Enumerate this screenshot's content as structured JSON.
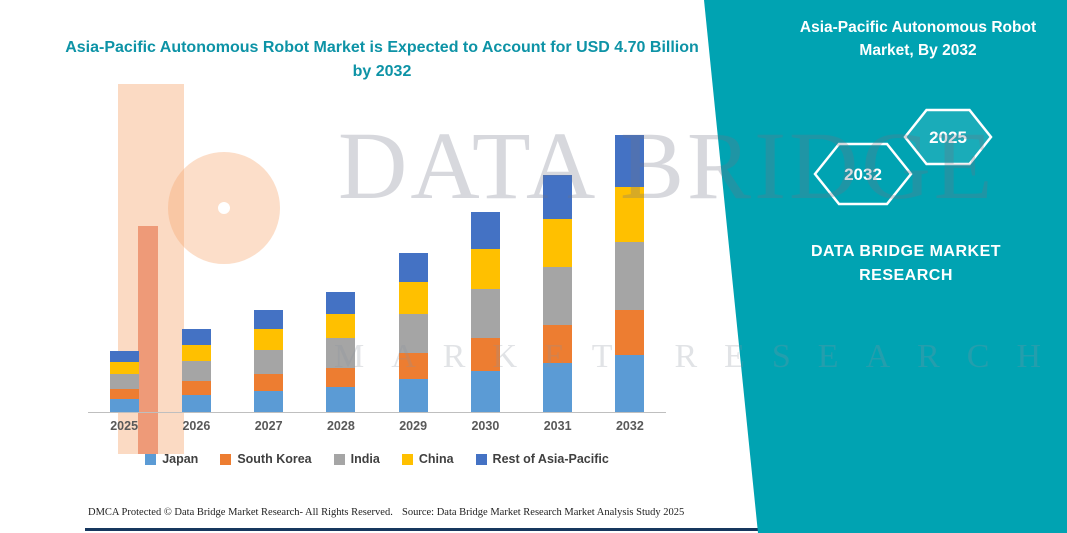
{
  "title": "Asia-Pacific Autonomous Robot Market is Expected to Account for USD 4.70 Billion by 2032",
  "colors": {
    "accent_teal": "#00A3B2",
    "title_text": "#0D93A6"
  },
  "right_panel": {
    "heading": "Asia-Pacific Autonomous Robot Market, By 2032",
    "hexagon_back_label": "2032",
    "hexagon_front_label": "2025",
    "brand": "DATA BRIDGE MARKET RESEARCH"
  },
  "watermark": {
    "line1": "DATA BRIDGE",
    "line2": "MARKET RESEARCH"
  },
  "footer": {
    "dmca": "DMCA Protected © Data Bridge Market Research-  All Rights Reserved.",
    "source": "Source: Data Bridge Market Research  Market Analysis Study 2025"
  },
  "chart_data": {
    "type": "bar",
    "stacked": true,
    "title": "Asia-Pacific Autonomous Robot Market is Expected to Account for USD 4.70 Billion by 2032",
    "unit": "USD Billion",
    "categories": [
      "2025",
      "2026",
      "2027",
      "2028",
      "2029",
      "2030",
      "2031",
      "2032"
    ],
    "series": [
      {
        "name": "Japan",
        "color": "#5B9BD5",
        "values": [
          0.22,
          0.29,
          0.36,
          0.42,
          0.56,
          0.7,
          0.83,
          0.97
        ]
      },
      {
        "name": "South Korea",
        "color": "#ED7D31",
        "values": [
          0.17,
          0.23,
          0.28,
          0.33,
          0.44,
          0.55,
          0.65,
          0.76
        ]
      },
      {
        "name": "India",
        "color": "#A5A5A5",
        "values": [
          0.25,
          0.34,
          0.42,
          0.5,
          0.66,
          0.83,
          0.98,
          1.15
        ]
      },
      {
        "name": "China",
        "color": "#FFC000",
        "values": [
          0.21,
          0.28,
          0.35,
          0.41,
          0.54,
          0.68,
          0.81,
          0.94
        ]
      },
      {
        "name": "Rest of Asia-Pacific",
        "color": "#4472C4",
        "values": [
          0.19,
          0.27,
          0.32,
          0.38,
          0.5,
          0.63,
          0.75,
          0.88
        ]
      }
    ],
    "totals": [
      1.04,
      1.41,
      1.73,
      2.04,
      2.7,
      3.39,
      4.02,
      4.7
    ],
    "xlabel": "",
    "ylabel": "",
    "ylim": [
      0,
      5
    ],
    "y_axis_visible": false,
    "grid": false,
    "legend_position": "bottom"
  }
}
